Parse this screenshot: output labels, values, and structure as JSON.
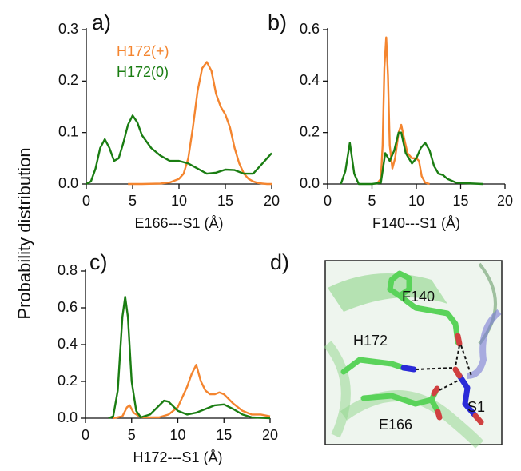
{
  "shared_ylabel": "Probability distribution",
  "chart_data": [
    {
      "type": "line",
      "panel_label": "a)",
      "xlabel": "E166---S1 (Å)",
      "xlim": [
        0,
        20
      ],
      "xticks": [
        0,
        5,
        10,
        15,
        20
      ],
      "ylim": [
        0,
        0.3
      ],
      "yticks": [
        {
          "value": 0,
          "label": "0.0"
        },
        0.1,
        0.2,
        0.3
      ],
      "legend": "upper left",
      "series": [
        {
          "name": "H172(+)",
          "color": "#f4852f",
          "x": [
            4.5,
            6,
            8,
            9,
            10,
            10.5,
            11,
            11.5,
            12,
            12.5,
            13,
            13.5,
            14,
            14.5,
            15,
            15.5,
            16,
            16.5,
            17,
            17.5,
            18,
            18.5,
            19,
            19.5,
            20
          ],
          "values": [
            0,
            0,
            0.001,
            0.003,
            0.01,
            0.02,
            0.05,
            0.11,
            0.18,
            0.225,
            0.237,
            0.22,
            0.175,
            0.15,
            0.135,
            0.11,
            0.07,
            0.04,
            0.02,
            0.01,
            0.005,
            0.002,
            0.001,
            0,
            0
          ]
        },
        {
          "name": "H172(0)",
          "color": "#1a7d12",
          "x": [
            0,
            0.5,
            1,
            1.5,
            2,
            2.5,
            3,
            3.5,
            4,
            4.5,
            5,
            5.5,
            6,
            7,
            8,
            9,
            10,
            11,
            12,
            13,
            14,
            15,
            16,
            17,
            18,
            19,
            20
          ],
          "values": [
            0,
            0.005,
            0.03,
            0.07,
            0.087,
            0.07,
            0.045,
            0.05,
            0.08,
            0.115,
            0.133,
            0.12,
            0.095,
            0.07,
            0.055,
            0.045,
            0.045,
            0.04,
            0.03,
            0.02,
            0.022,
            0.028,
            0.027,
            0.02,
            0.02,
            0.04,
            0.06
          ]
        }
      ]
    },
    {
      "type": "line",
      "panel_label": "b)",
      "xlabel": "F140---S1 (Å)",
      "xlim": [
        0,
        20
      ],
      "xticks": [
        0,
        5,
        10,
        15,
        20
      ],
      "ylim": [
        0,
        0.6
      ],
      "yticks": [
        {
          "value": 0,
          "label": "0.0"
        },
        0.2,
        0.4,
        0.6
      ],
      "series": [
        {
          "name": "H172(+)",
          "color": "#f4852f",
          "x": [
            5.5,
            6,
            6.2,
            6.4,
            6.6,
            6.8,
            7,
            7.3,
            7.6,
            8,
            8.3,
            8.6,
            9,
            9.5,
            10,
            10.3,
            10.6,
            11,
            11.5
          ],
          "values": [
            0,
            0.02,
            0.15,
            0.45,
            0.57,
            0.42,
            0.15,
            0.06,
            0.1,
            0.2,
            0.23,
            0.18,
            0.12,
            0.1,
            0.1,
            0.09,
            0.03,
            0.005,
            0
          ]
        },
        {
          "name": "H172(0)",
          "color": "#1a7d12",
          "x": [
            1.5,
            2,
            2.5,
            3,
            3.5,
            5,
            6,
            6.5,
            7,
            7.5,
            8,
            8.3,
            8.8,
            9.5,
            10,
            10.5,
            11,
            11.5,
            12,
            12.5,
            13,
            13.5,
            14.5,
            17.5
          ],
          "values": [
            0,
            0.05,
            0.16,
            0.04,
            0,
            0,
            0.005,
            0.12,
            0.09,
            0.13,
            0.2,
            0.2,
            0.12,
            0.08,
            0.1,
            0.14,
            0.16,
            0.13,
            0.07,
            0.04,
            0.035,
            0.02,
            0.005,
            0
          ]
        }
      ]
    },
    {
      "type": "line",
      "panel_label": "c)",
      "xlabel": "H172---S1 (Å)",
      "xlim": [
        0,
        20
      ],
      "xticks": [
        0,
        5,
        10,
        15,
        20
      ],
      "ylim": [
        0,
        0.8
      ],
      "yticks": [
        {
          "value": 0,
          "label": "0.0"
        },
        0.2,
        0.4,
        0.6,
        0.8
      ],
      "series": [
        {
          "name": "H172(+)",
          "color": "#f4852f",
          "x": [
            3,
            4,
            4.5,
            4.8,
            5.2,
            6,
            8,
            9,
            10,
            11,
            11.5,
            12,
            12.5,
            13,
            13.5,
            14,
            14.5,
            15,
            16,
            17,
            18,
            19,
            20
          ],
          "values": [
            0,
            0.01,
            0.06,
            0.07,
            0.03,
            0.005,
            0.005,
            0.02,
            0.06,
            0.17,
            0.24,
            0.29,
            0.2,
            0.15,
            0.13,
            0.13,
            0.14,
            0.13,
            0.08,
            0.04,
            0.02,
            0.02,
            0.01
          ]
        },
        {
          "name": "H172(0)",
          "color": "#1a7d12",
          "x": [
            2.5,
            3,
            3.5,
            4,
            4.3,
            4.6,
            5,
            5.5,
            6,
            7,
            8,
            8.5,
            9,
            10,
            11,
            12,
            13,
            14,
            15,
            16,
            17,
            18,
            20
          ],
          "values": [
            0,
            0.01,
            0.15,
            0.55,
            0.66,
            0.55,
            0.2,
            0.04,
            0.005,
            0.02,
            0.07,
            0.095,
            0.09,
            0.04,
            0.02,
            0.03,
            0.05,
            0.07,
            0.075,
            0.05,
            0.02,
            0.005,
            0
          ]
        }
      ]
    }
  ],
  "structure": {
    "panel_label": "d)",
    "labels": [
      "F140",
      "H172",
      "E166",
      "S1"
    ]
  }
}
